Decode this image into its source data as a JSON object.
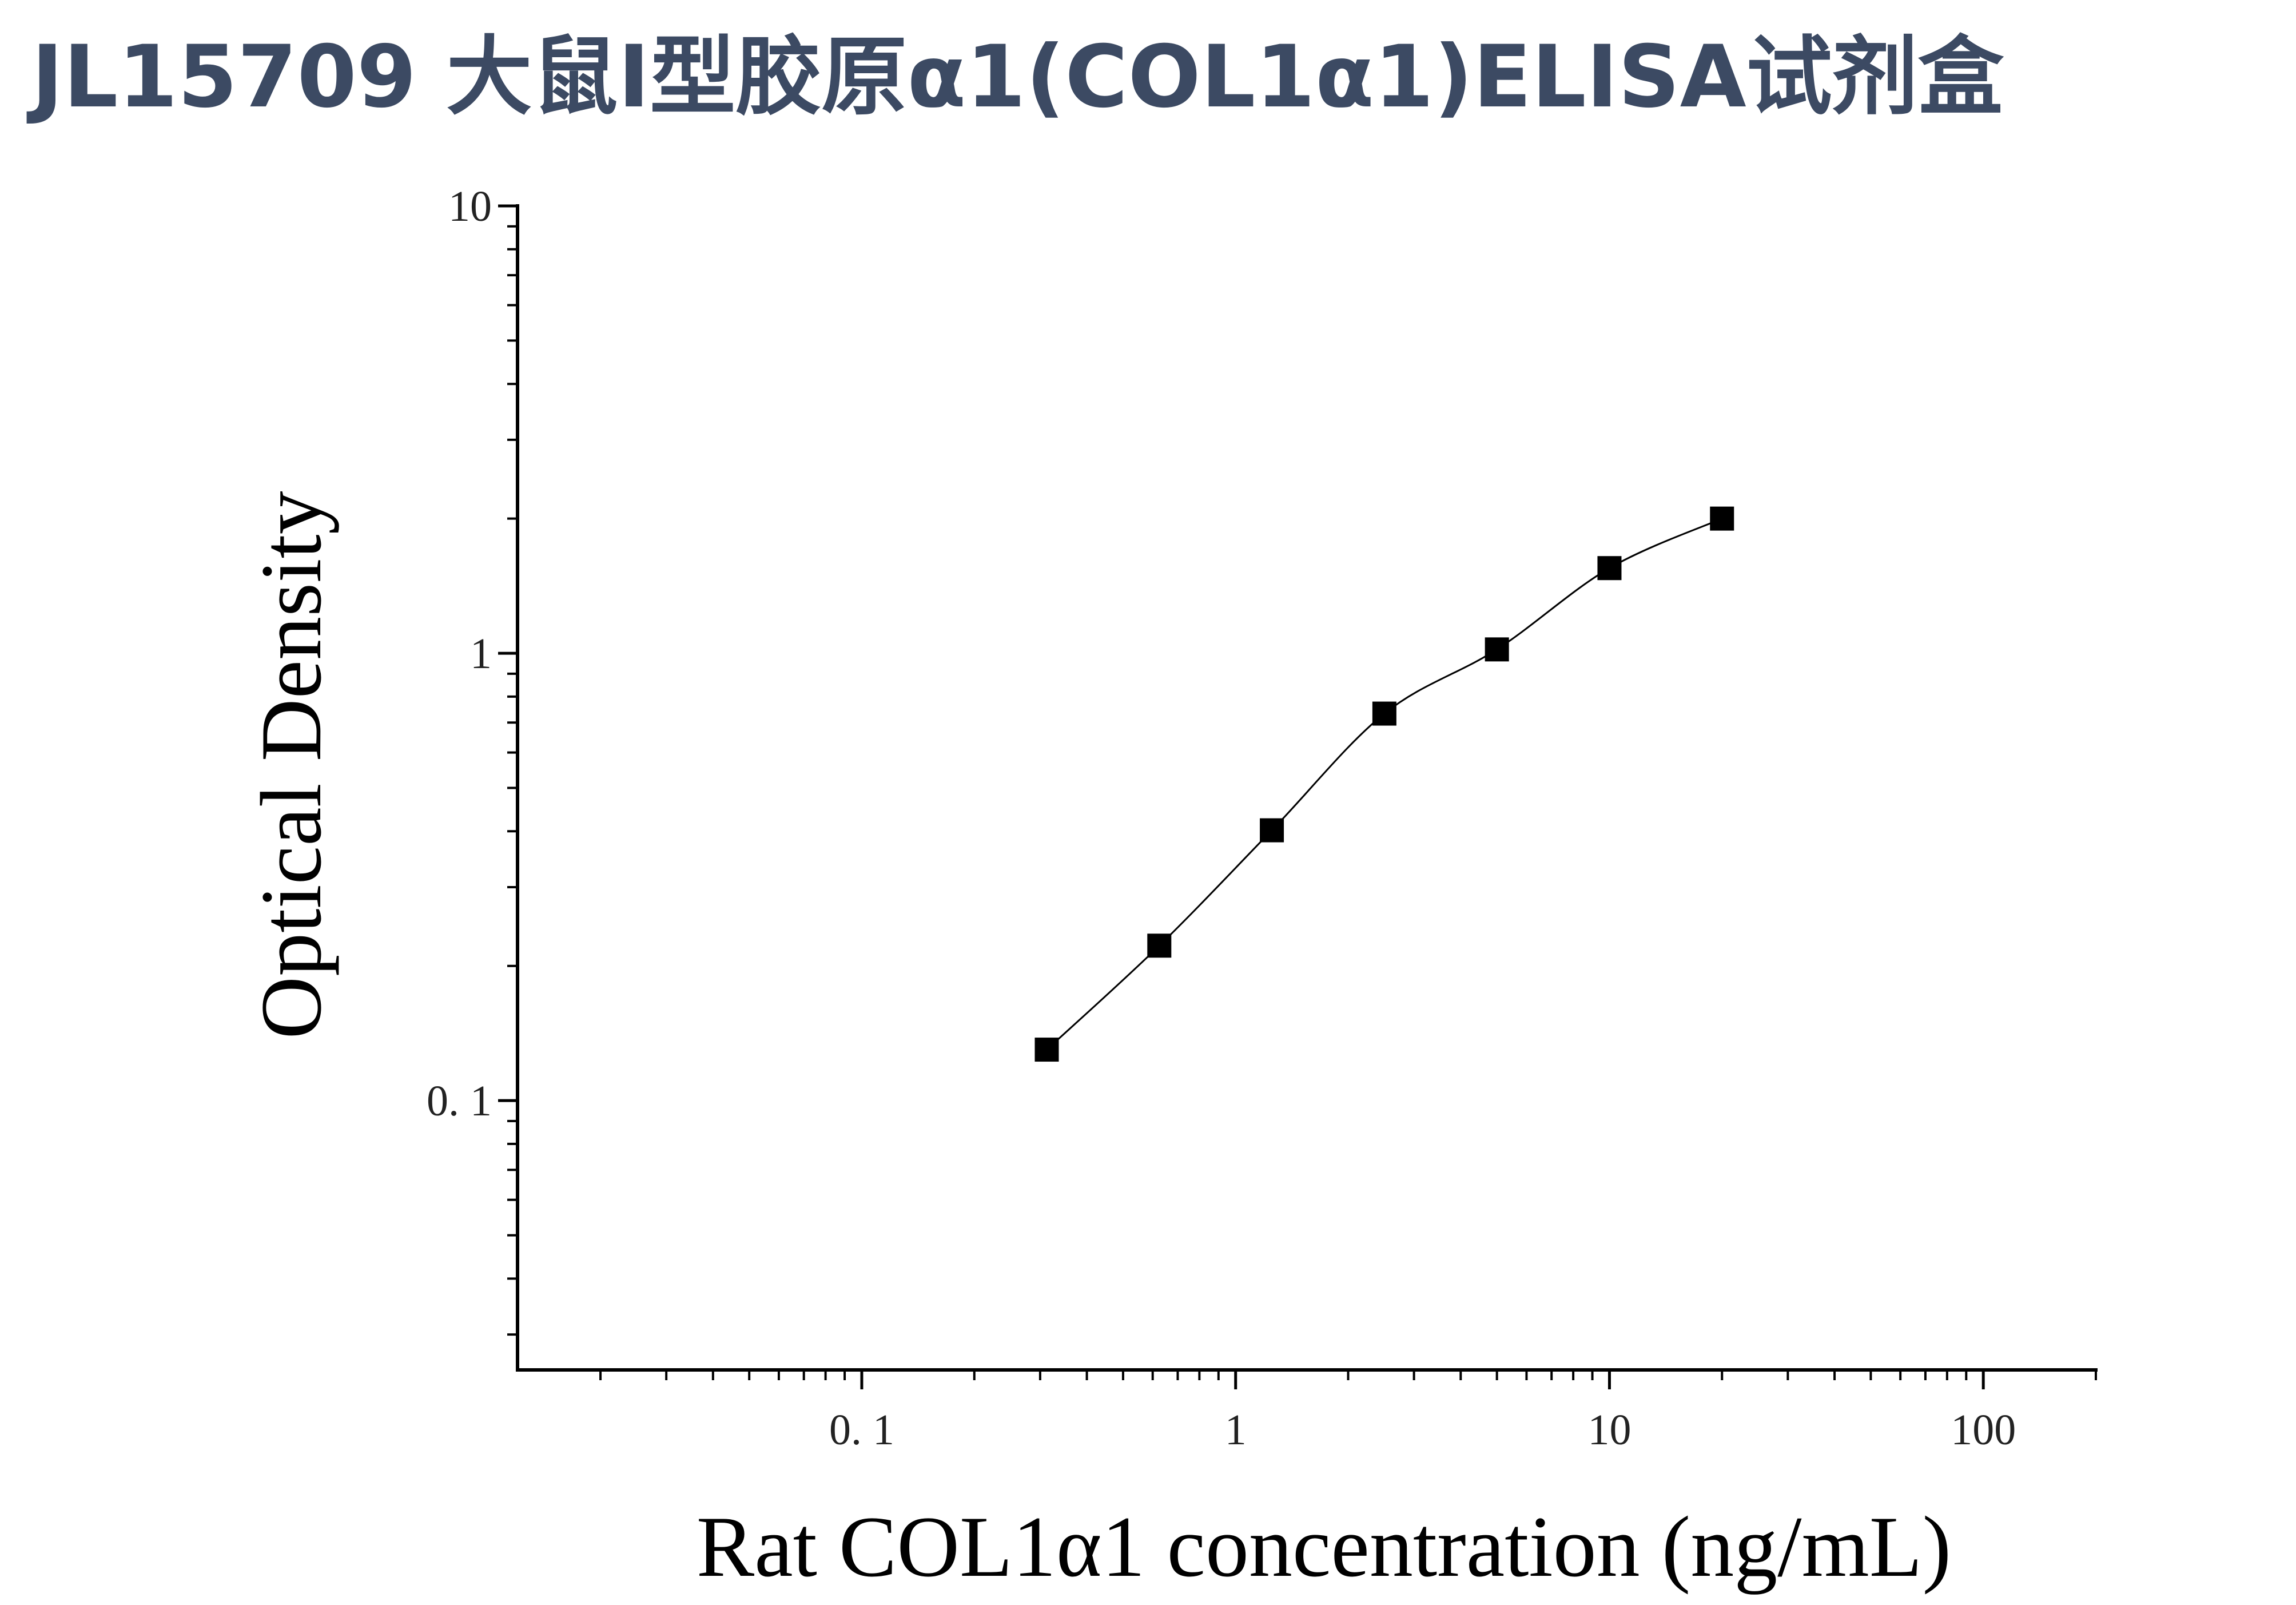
{
  "title": "JL15709 大鼠Ⅰ型胶原α1(COL1α1)ELISA试剂盒",
  "chart_data": {
    "type": "scatter",
    "title": "JL15709 大鼠Ⅰ型胶原α1(COL1α1)ELISA试剂盒",
    "xlabel": "Rat COL1α1 concentration (ng/mL)",
    "ylabel": "Optical Density",
    "x_scale": "log",
    "y_scale": "log",
    "xlim": [
      0.012,
      200
    ],
    "ylim": [
      0.025,
      10
    ],
    "x_ticks": [
      {
        "value": 0.1,
        "label": "0. 1"
      },
      {
        "value": 1,
        "label": "1"
      },
      {
        "value": 10,
        "label": "10"
      },
      {
        "value": 100,
        "label": "100"
      }
    ],
    "y_ticks": [
      {
        "value": 0.1,
        "label": "0. 1"
      },
      {
        "value": 1,
        "label": "1"
      },
      {
        "value": 10,
        "label": "10"
      }
    ],
    "grid": false,
    "legend": "none",
    "marker": "square",
    "marker_color": "#000000",
    "curve": "fitted line through points",
    "series": [
      {
        "x": [
          0.3125,
          0.625,
          1.25,
          2.5,
          5,
          10,
          20
        ],
        "y": [
          0.13,
          0.222,
          0.402,
          0.733,
          1.02,
          1.55,
          2.0
        ]
      }
    ]
  }
}
